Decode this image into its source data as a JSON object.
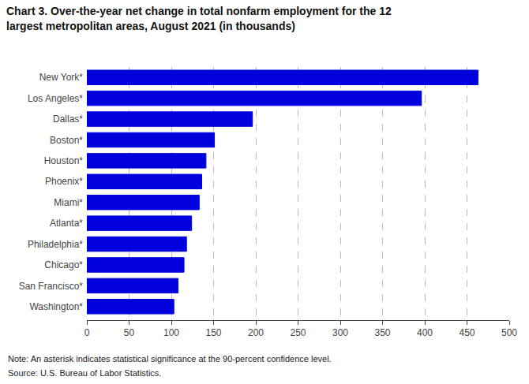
{
  "chart_data": {
    "type": "bar",
    "orientation": "horizontal",
    "title": "Chart 3. Over-the-year net change in total nonfarm employment for the 12\nlargest metropolitan areas, August 2021 (in thousands)",
    "categories": [
      "Washington*",
      "San Francisco*",
      "Chicago*",
      "Philadelphia*",
      "Atlanta*",
      "Miami*",
      "Phoenix*",
      "Houston*",
      "Boston*",
      "Dallas*",
      "Los Angeles*",
      "New York*"
    ],
    "values": [
      103,
      108,
      115,
      118,
      124,
      133,
      136,
      141,
      151,
      196,
      396,
      463
    ],
    "color": "#0000dd",
    "xlim": [
      0,
      500
    ],
    "xticks": [
      0,
      50,
      100,
      150,
      200,
      250,
      300,
      350,
      400,
      450,
      500
    ],
    "grid": true,
    "annotations": [
      "Note: An asterisk indicates statistical significance at the 90-percent confidence level.",
      "Source: U.S. Bureau of Labor Statistics."
    ]
  }
}
